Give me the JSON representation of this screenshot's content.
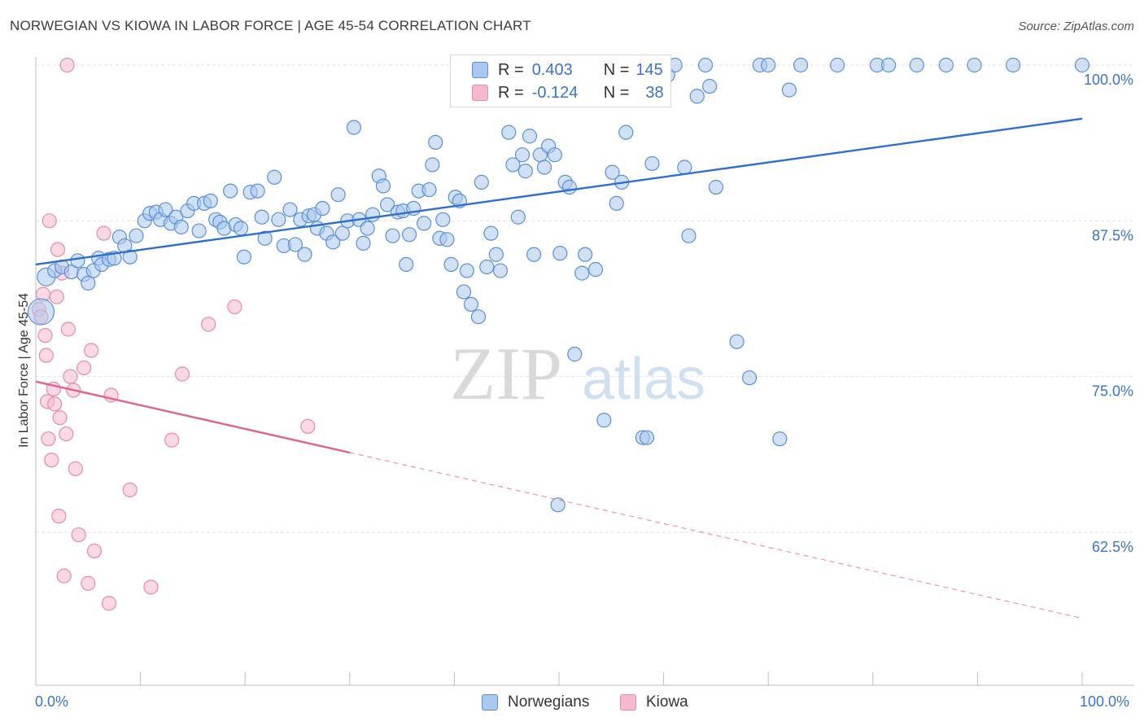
{
  "header": {
    "title": "NORWEGIAN VS KIOWA IN LABOR FORCE | AGE 45-54 CORRELATION CHART",
    "source": "Source: ZipAtlas.com"
  },
  "watermark": {
    "zip": "ZIP",
    "atlas": "atlas"
  },
  "legend": {
    "rows": [
      {
        "r_label": "R =",
        "r_value": "0.403",
        "n_label": "N =",
        "n_value": "145"
      },
      {
        "r_label": "R =",
        "r_value": "-0.124",
        "n_label": "N =",
        "n_value": "38"
      }
    ]
  },
  "bottom_legend": {
    "items": [
      {
        "label": "Norwegians"
      },
      {
        "label": "Kiowa"
      }
    ]
  },
  "colors": {
    "blue_fill": "#a9c8ee",
    "blue_stroke": "#5a8fd6",
    "blue_line": "#2f6fcc",
    "pink_fill": "#f5b9cd",
    "pink_stroke": "#e68aa8",
    "pink_line": "#e0628d",
    "tick_text": "#3a74c8",
    "grid": "#e2e2e2"
  },
  "chart_data": {
    "type": "scatter",
    "title": "NORWEGIAN VS KIOWA IN LABOR FORCE | AGE 45-54 CORRELATION CHART",
    "xlabel": "",
    "ylabel": "In Labor Force | Age 45-54",
    "xlim": [
      0,
      100
    ],
    "ylim": [
      51,
      102
    ],
    "x_tick_labels": [
      "0.0%",
      "100.0%"
    ],
    "y_ticks": [
      62.5,
      75.0,
      87.5,
      100.0
    ],
    "y_tick_labels": [
      "62.5%",
      "75.0%",
      "87.5%",
      "100.0%"
    ],
    "grid": true,
    "legend_position": "top-center",
    "series": [
      {
        "name": "Norwegians",
        "r": 0.403,
        "n": 145,
        "trend": {
          "x": [
            0,
            100
          ],
          "y": [
            84.0,
            95.7
          ],
          "style": "solid"
        },
        "points": [
          [
            0.5,
            80.2
          ],
          [
            1.0,
            83.0
          ],
          [
            1.8,
            83.5
          ],
          [
            2.5,
            83.8
          ],
          [
            3.4,
            83.4
          ],
          [
            4.0,
            84.3
          ],
          [
            4.6,
            83.2
          ],
          [
            5.0,
            82.5
          ],
          [
            5.5,
            83.5
          ],
          [
            6.0,
            84.5
          ],
          [
            6.3,
            84.0
          ],
          [
            7.0,
            84.4
          ],
          [
            7.5,
            84.5
          ],
          [
            8.0,
            86.2
          ],
          [
            8.5,
            85.5
          ],
          [
            9.0,
            84.6
          ],
          [
            9.6,
            86.3
          ],
          [
            10.4,
            87.5
          ],
          [
            10.9,
            88.1
          ],
          [
            11.5,
            88.2
          ],
          [
            11.9,
            87.6
          ],
          [
            12.4,
            88.4
          ],
          [
            12.9,
            87.3
          ],
          [
            13.4,
            87.8
          ],
          [
            13.9,
            87.0
          ],
          [
            14.5,
            88.3
          ],
          [
            15.1,
            88.9
          ],
          [
            15.6,
            86.7
          ],
          [
            16.1,
            88.9
          ],
          [
            16.7,
            89.1
          ],
          [
            17.2,
            87.6
          ],
          [
            17.6,
            87.4
          ],
          [
            18.0,
            86.9
          ],
          [
            18.6,
            89.9
          ],
          [
            19.1,
            87.2
          ],
          [
            19.6,
            86.9
          ],
          [
            19.9,
            84.6
          ],
          [
            20.5,
            89.8
          ],
          [
            21.2,
            89.9
          ],
          [
            21.6,
            87.8
          ],
          [
            21.9,
            86.1
          ],
          [
            22.8,
            91.0
          ],
          [
            23.2,
            87.6
          ],
          [
            23.7,
            85.5
          ],
          [
            24.3,
            88.4
          ],
          [
            24.8,
            85.6
          ],
          [
            25.3,
            87.6
          ],
          [
            25.7,
            84.8
          ],
          [
            26.1,
            87.9
          ],
          [
            26.6,
            88.0
          ],
          [
            26.9,
            86.9
          ],
          [
            27.4,
            88.5
          ],
          [
            27.8,
            86.5
          ],
          [
            28.4,
            85.8
          ],
          [
            28.9,
            89.6
          ],
          [
            29.3,
            86.5
          ],
          [
            29.8,
            87.5
          ],
          [
            30.4,
            95.0
          ],
          [
            30.9,
            87.6
          ],
          [
            31.3,
            85.7
          ],
          [
            31.7,
            86.9
          ],
          [
            32.2,
            88.0
          ],
          [
            32.8,
            91.1
          ],
          [
            33.2,
            90.3
          ],
          [
            33.6,
            88.8
          ],
          [
            34.1,
            86.3
          ],
          [
            34.6,
            88.2
          ],
          [
            35.1,
            88.3
          ],
          [
            35.4,
            84.0
          ],
          [
            35.7,
            86.4
          ],
          [
            36.1,
            88.5
          ],
          [
            36.6,
            89.9
          ],
          [
            37.1,
            87.3
          ],
          [
            37.6,
            90.0
          ],
          [
            37.9,
            92.0
          ],
          [
            38.2,
            93.8
          ],
          [
            38.6,
            86.1
          ],
          [
            38.9,
            87.6
          ],
          [
            39.3,
            86.0
          ],
          [
            39.7,
            84.0
          ],
          [
            40.1,
            89.4
          ],
          [
            40.5,
            89.1
          ],
          [
            40.9,
            81.8
          ],
          [
            41.2,
            83.5
          ],
          [
            41.6,
            80.8
          ],
          [
            42.3,
            79.8
          ],
          [
            42.6,
            90.6
          ],
          [
            43.1,
            83.8
          ],
          [
            43.5,
            86.5
          ],
          [
            44.0,
            84.8
          ],
          [
            44.4,
            83.5
          ],
          [
            45.2,
            94.6
          ],
          [
            45.6,
            92.0
          ],
          [
            46.1,
            87.8
          ],
          [
            46.5,
            92.8
          ],
          [
            46.8,
            91.5
          ],
          [
            47.2,
            94.3
          ],
          [
            47.6,
            84.8
          ],
          [
            48.2,
            92.8
          ],
          [
            48.6,
            91.8
          ],
          [
            49.0,
            93.5
          ],
          [
            49.6,
            92.8
          ],
          [
            50.1,
            84.9
          ],
          [
            50.6,
            90.6
          ],
          [
            51.0,
            90.2
          ],
          [
            51.5,
            76.8
          ],
          [
            52.2,
            83.3
          ],
          [
            52.5,
            84.8
          ],
          [
            52.9,
            99.3
          ],
          [
            53.5,
            83.6
          ],
          [
            54.3,
            71.5
          ],
          [
            55.1,
            91.4
          ],
          [
            55.5,
            88.9
          ],
          [
            56.0,
            90.6
          ],
          [
            56.4,
            94.6
          ],
          [
            57.0,
            100.0
          ],
          [
            58.0,
            70.1
          ],
          [
            58.4,
            70.1
          ],
          [
            58.9,
            92.1
          ],
          [
            59.4,
            100.0
          ],
          [
            59.9,
            100.0
          ],
          [
            60.4,
            99.2
          ],
          [
            61.1,
            100.0
          ],
          [
            62.0,
            91.8
          ],
          [
            62.4,
            86.3
          ],
          [
            63.2,
            97.5
          ],
          [
            64.0,
            100.0
          ],
          [
            64.4,
            98.3
          ],
          [
            65.0,
            90.2
          ],
          [
            67.0,
            77.8
          ],
          [
            68.2,
            74.9
          ],
          [
            69.2,
            100.0
          ],
          [
            70.0,
            100.0
          ],
          [
            71.1,
            70.0
          ],
          [
            72.0,
            98.0
          ],
          [
            73.1,
            100.0
          ],
          [
            76.6,
            100.0
          ],
          [
            80.4,
            100.0
          ],
          [
            81.5,
            100.0
          ],
          [
            84.2,
            100.0
          ],
          [
            87.0,
            100.0
          ],
          [
            89.7,
            100.0
          ],
          [
            93.4,
            100.0
          ],
          [
            100.0,
            100.0
          ],
          [
            49.9,
            64.7
          ]
        ]
      },
      {
        "name": "Kiowa",
        "r": -0.124,
        "n": 38,
        "trend": {
          "x": [
            0,
            100
          ],
          "y": [
            74.6,
            55.6
          ],
          "solid_until_x": 30,
          "style": "solid-then-dashed"
        },
        "points": [
          [
            0.3,
            80.4
          ],
          [
            0.5,
            79.8
          ],
          [
            0.7,
            81.6
          ],
          [
            0.9,
            78.3
          ],
          [
            1.0,
            76.7
          ],
          [
            1.1,
            73.0
          ],
          [
            1.2,
            70.0
          ],
          [
            1.3,
            87.5
          ],
          [
            1.5,
            68.3
          ],
          [
            1.7,
            74.0
          ],
          [
            1.8,
            72.8
          ],
          [
            2.0,
            81.4
          ],
          [
            2.1,
            85.2
          ],
          [
            2.2,
            63.8
          ],
          [
            2.3,
            71.7
          ],
          [
            2.5,
            83.3
          ],
          [
            2.7,
            59.0
          ],
          [
            2.9,
            70.4
          ],
          [
            3.0,
            100.0
          ],
          [
            3.1,
            78.8
          ],
          [
            3.3,
            75.0
          ],
          [
            3.6,
            73.9
          ],
          [
            3.8,
            67.6
          ],
          [
            4.1,
            62.3
          ],
          [
            4.6,
            75.7
          ],
          [
            5.0,
            58.4
          ],
          [
            5.3,
            77.1
          ],
          [
            5.6,
            61.0
          ],
          [
            6.5,
            86.5
          ],
          [
            7.0,
            56.8
          ],
          [
            7.2,
            73.5
          ],
          [
            9.0,
            65.9
          ],
          [
            11.0,
            58.1
          ],
          [
            13.0,
            69.9
          ],
          [
            14.0,
            75.2
          ],
          [
            16.5,
            79.2
          ],
          [
            19.0,
            80.6
          ],
          [
            26.0,
            71.0
          ]
        ]
      }
    ]
  }
}
